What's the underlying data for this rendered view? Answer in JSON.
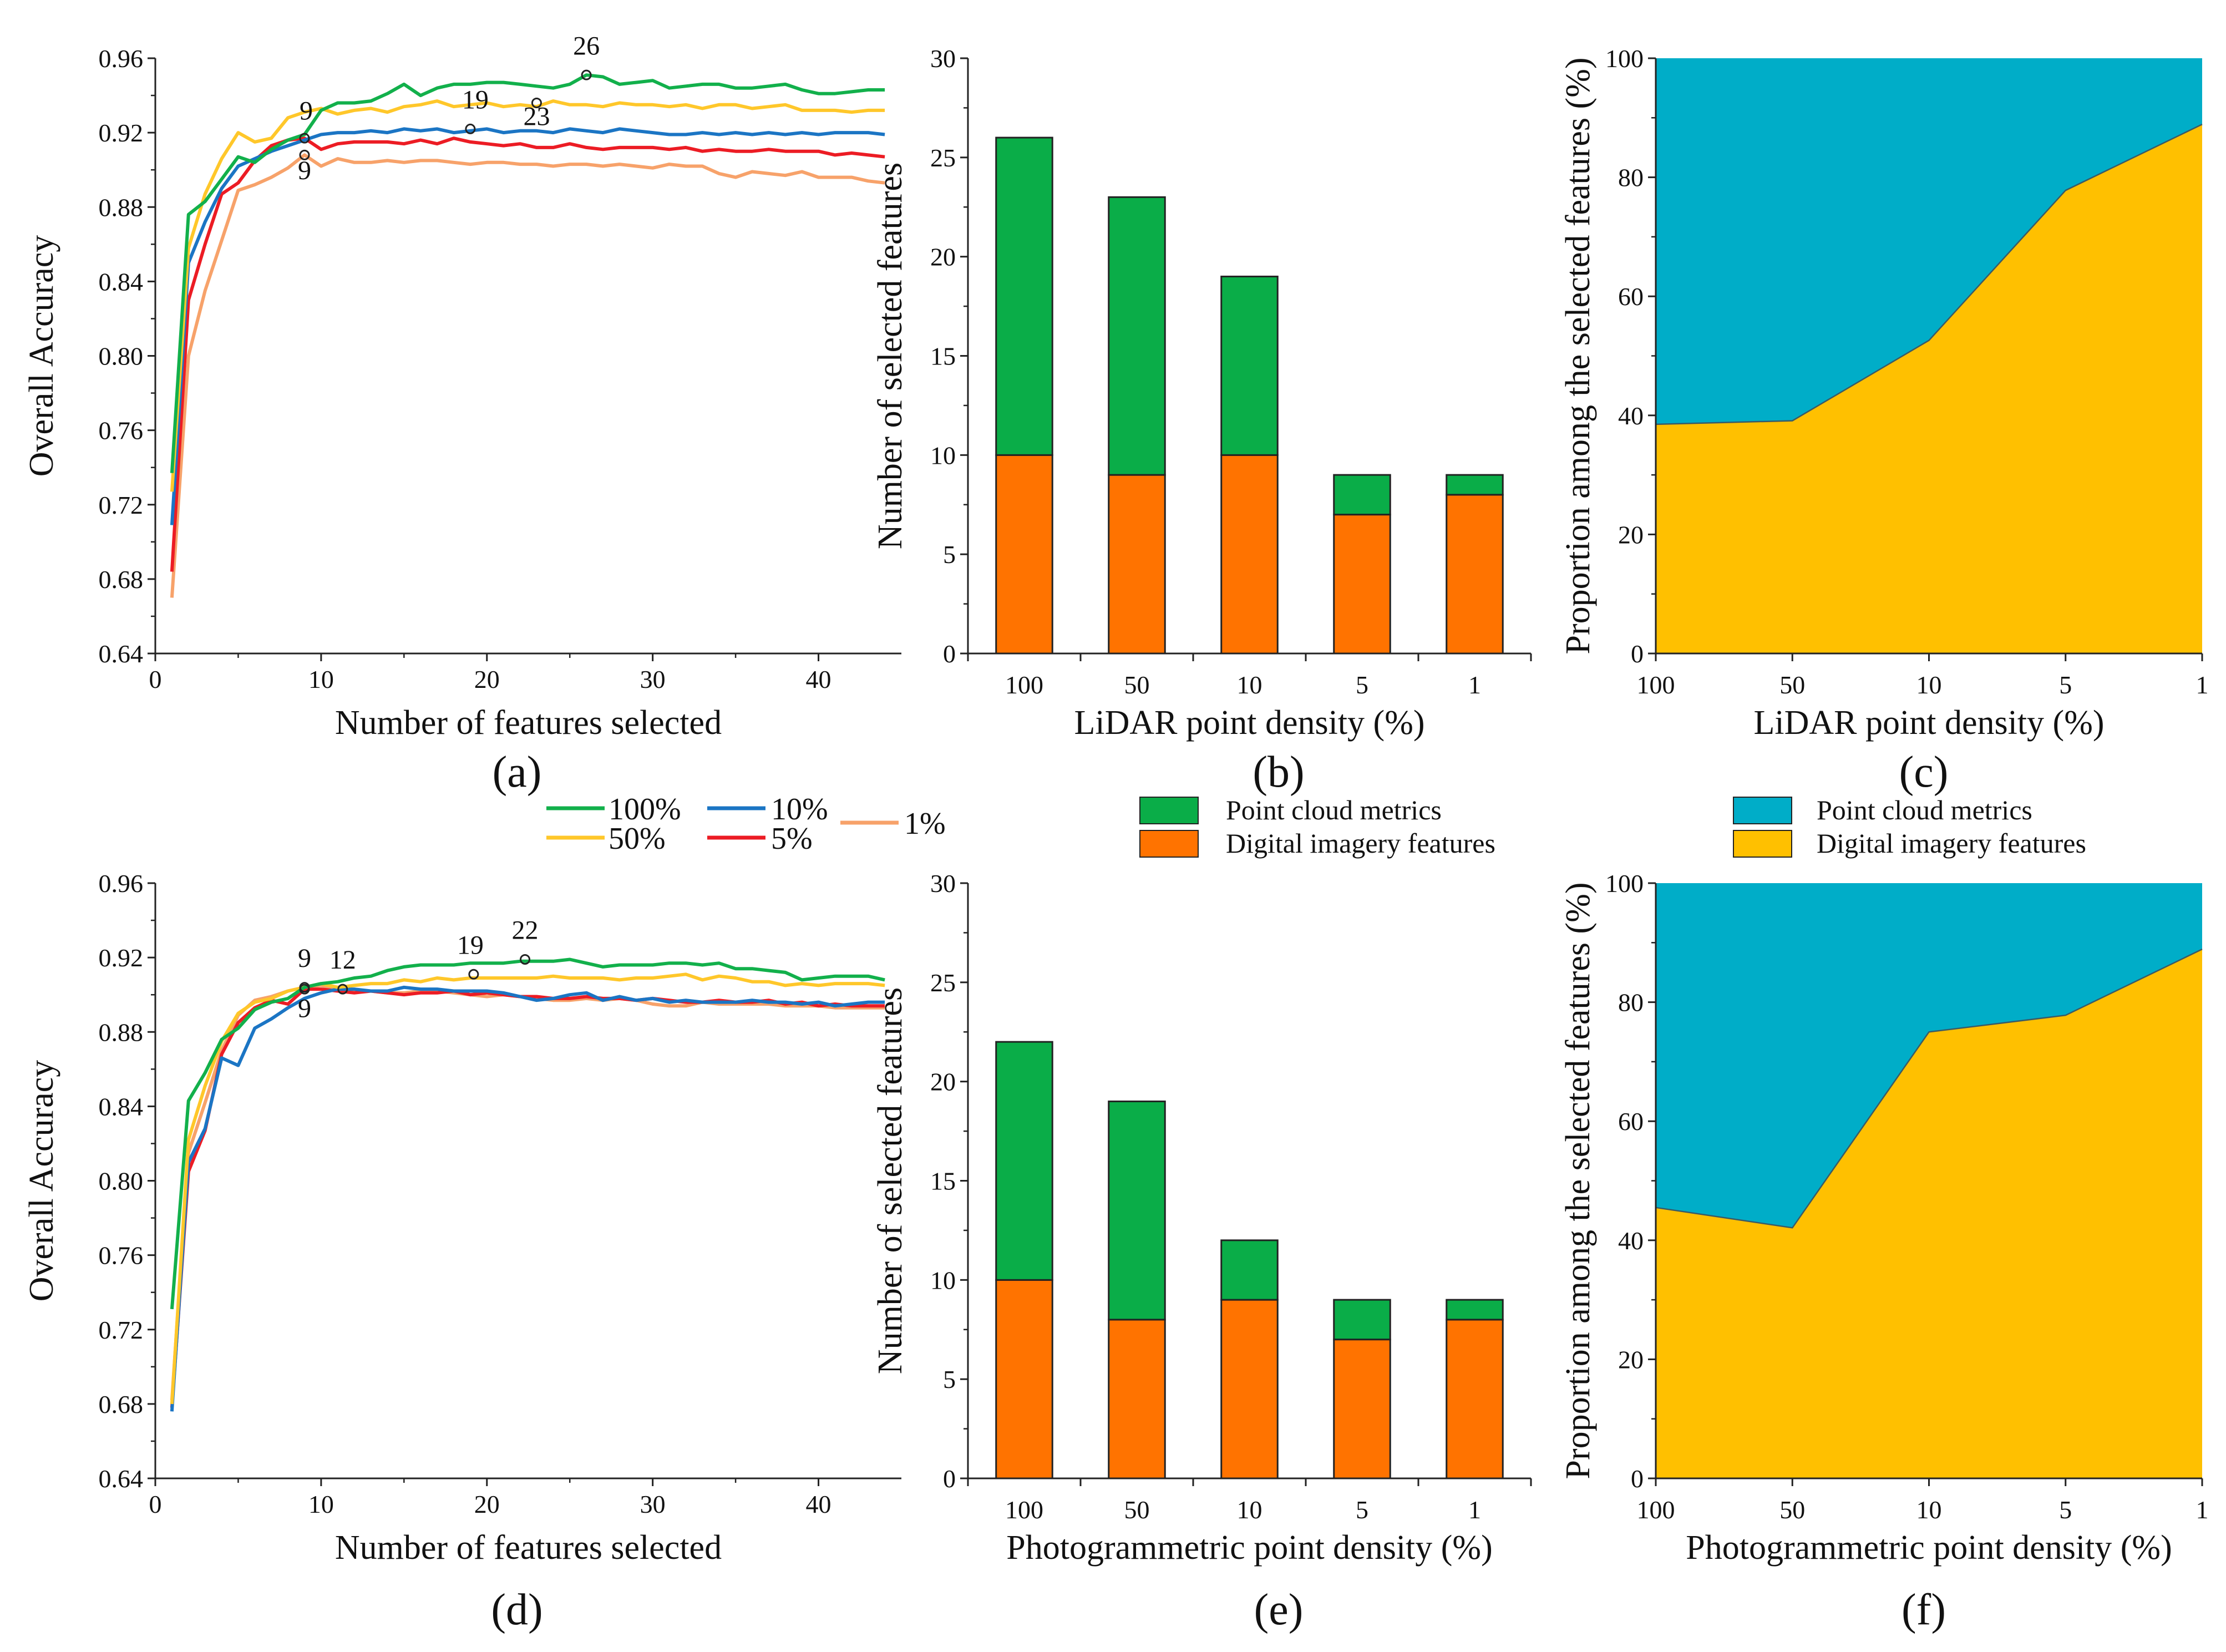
{
  "colors": {
    "s100": "#12b04b",
    "s50": "#ffc72a",
    "s10": "#1b75c4",
    "s5": "#ec1c24",
    "s1": "#f7a26a",
    "bar_green": "#0aad48",
    "bar_orange": "#ff7300",
    "area_blue": "#00adc8",
    "area_yellow": "#ffc000"
  },
  "line_legend": [
    {
      "label": "100%",
      "color": "#12b04b"
    },
    {
      "label": "10%",
      "color": "#1b75c4"
    },
    {
      "label": "1%",
      "color": "#f7a26a"
    },
    {
      "label": "50%",
      "color": "#ffc72a"
    },
    {
      "label": "5%",
      "color": "#ec1c24"
    }
  ],
  "bar_legend": [
    {
      "label": "Point cloud metrics",
      "color": "#0aad48"
    },
    {
      "label": "Digital imagery features",
      "color": "#ff7300"
    }
  ],
  "area_legend": [
    {
      "label": "Point cloud metrics",
      "color": "#00adc8"
    },
    {
      "label": "Digital imagery features",
      "color": "#ffc000"
    }
  ],
  "chart_data": [
    {
      "panel": "a",
      "panel_label": "(a)",
      "type": "line",
      "xlabel": "Number of features selected",
      "ylabel": "Overall Accuracy",
      "xlim": [
        0,
        45
      ],
      "ylim": [
        0.64,
        0.96
      ],
      "xticks": [
        0,
        10,
        20,
        30,
        40
      ],
      "xtick_labels": [
        "0",
        "10",
        "20",
        "30",
        "40"
      ],
      "yticks": [
        0.64,
        0.68,
        0.72,
        0.76,
        0.8,
        0.84,
        0.88,
        0.92,
        0.96
      ],
      "ytick_labels": [
        "0.64",
        "0.68",
        "0.72",
        "0.76",
        "0.80",
        "0.84",
        "0.88",
        "0.92",
        "0.96"
      ],
      "x": [
        1,
        2,
        3,
        4,
        5,
        6,
        7,
        8,
        9,
        10,
        11,
        12,
        13,
        14,
        15,
        16,
        17,
        18,
        19,
        20,
        21,
        22,
        23,
        24,
        25,
        26,
        27,
        28,
        29,
        30,
        31,
        32,
        33,
        34,
        35,
        36,
        37,
        38,
        39,
        40,
        41,
        42,
        43,
        44
      ],
      "series": [
        {
          "name": "100%",
          "color_key": "s100",
          "values": [
            0.737,
            0.876,
            0.883,
            0.895,
            0.907,
            0.904,
            0.911,
            0.916,
            0.919,
            0.932,
            0.936,
            0.936,
            0.937,
            0.941,
            0.946,
            0.94,
            0.944,
            0.946,
            0.946,
            0.947,
            0.947,
            0.946,
            0.945,
            0.944,
            0.946,
            0.951,
            0.95,
            0.946,
            0.947,
            0.948,
            0.944,
            0.945,
            0.946,
            0.946,
            0.944,
            0.944,
            0.945,
            0.946,
            0.943,
            0.941,
            0.941,
            0.942,
            0.943,
            0.943
          ]
        },
        {
          "name": "50%",
          "color_key": "s50",
          "values": [
            0.727,
            0.858,
            0.887,
            0.906,
            0.92,
            0.915,
            0.917,
            0.928,
            0.931,
            0.933,
            0.93,
            0.932,
            0.933,
            0.931,
            0.934,
            0.935,
            0.937,
            0.934,
            0.935,
            0.936,
            0.934,
            0.935,
            0.934,
            0.937,
            0.935,
            0.935,
            0.934,
            0.936,
            0.935,
            0.935,
            0.934,
            0.935,
            0.933,
            0.935,
            0.935,
            0.933,
            0.934,
            0.935,
            0.932,
            0.932,
            0.932,
            0.931,
            0.932,
            0.932
          ]
        },
        {
          "name": "10%",
          "color_key": "s10",
          "values": [
            0.709,
            0.85,
            0.872,
            0.89,
            0.902,
            0.906,
            0.91,
            0.913,
            0.916,
            0.919,
            0.92,
            0.92,
            0.921,
            0.92,
            0.922,
            0.921,
            0.922,
            0.92,
            0.921,
            0.922,
            0.92,
            0.921,
            0.921,
            0.92,
            0.922,
            0.921,
            0.92,
            0.922,
            0.921,
            0.92,
            0.919,
            0.919,
            0.92,
            0.919,
            0.92,
            0.919,
            0.92,
            0.919,
            0.92,
            0.919,
            0.92,
            0.92,
            0.92,
            0.919
          ]
        },
        {
          "name": "5%",
          "color_key": "s5",
          "values": [
            0.684,
            0.83,
            0.86,
            0.887,
            0.893,
            0.905,
            0.913,
            0.916,
            0.917,
            0.911,
            0.914,
            0.915,
            0.915,
            0.915,
            0.914,
            0.916,
            0.914,
            0.917,
            0.915,
            0.914,
            0.913,
            0.914,
            0.912,
            0.912,
            0.914,
            0.912,
            0.911,
            0.912,
            0.912,
            0.912,
            0.911,
            0.912,
            0.91,
            0.911,
            0.91,
            0.91,
            0.911,
            0.91,
            0.91,
            0.91,
            0.908,
            0.909,
            0.908,
            0.907
          ]
        },
        {
          "name": "1%",
          "color_key": "s1",
          "values": [
            0.67,
            0.8,
            0.835,
            0.862,
            0.889,
            0.892,
            0.896,
            0.901,
            0.908,
            0.902,
            0.906,
            0.904,
            0.904,
            0.905,
            0.904,
            0.905,
            0.905,
            0.904,
            0.903,
            0.904,
            0.904,
            0.903,
            0.903,
            0.902,
            0.903,
            0.903,
            0.902,
            0.903,
            0.902,
            0.901,
            0.903,
            0.902,
            0.902,
            0.898,
            0.896,
            0.899,
            0.898,
            0.897,
            0.899,
            0.896,
            0.896,
            0.896,
            0.894,
            0.893
          ]
        }
      ],
      "annotations": [
        {
          "text": "26",
          "x": 26,
          "y": 0.951,
          "label_dx": 0,
          "label_dy": 0.011,
          "marker": true
        },
        {
          "text": "19",
          "x": 19,
          "y": 0.922,
          "label_dx": 0.3,
          "label_dy": 0.011,
          "marker": true
        },
        {
          "text": "23",
          "x": 23,
          "y": 0.936,
          "label_dx": 0,
          "label_dy": -0.012,
          "marker": true
        },
        {
          "text": "9",
          "x": 9,
          "y": 0.917,
          "label_dx": 0.1,
          "label_dy": 0.01,
          "marker": true
        },
        {
          "text": "9",
          "x": 9,
          "y": 0.908,
          "label_dx": 0,
          "label_dy": -0.013,
          "marker": true
        }
      ]
    },
    {
      "panel": "b",
      "panel_label": "(b)",
      "type": "bar",
      "stacked": true,
      "xlabel": "LiDAR point density (%)",
      "ylabel": "Number of selected features",
      "ylim": [
        0,
        30
      ],
      "yticks": [
        0,
        5,
        10,
        15,
        20,
        25,
        30
      ],
      "ytick_labels": [
        "0",
        "5",
        "10",
        "15",
        "20",
        "25",
        "30"
      ],
      "categories": [
        "100",
        "50",
        "10",
        "5",
        "1"
      ],
      "series": [
        {
          "name": "Digital imagery features",
          "color_key": "bar_orange",
          "values": [
            10,
            9,
            10,
            7,
            8
          ]
        },
        {
          "name": "Point cloud metrics",
          "color_key": "bar_green",
          "values": [
            16,
            14,
            9,
            2,
            1
          ]
        }
      ]
    },
    {
      "panel": "c",
      "panel_label": "(c)",
      "type": "area",
      "stacked": true,
      "xlabel": "LiDAR point density (%)",
      "ylabel": "Proportion among the selected features (%)",
      "ylim": [
        0,
        100
      ],
      "yticks": [
        0,
        20,
        40,
        60,
        80,
        100
      ],
      "ytick_labels": [
        "0",
        "20",
        "40",
        "60",
        "80",
        "100"
      ],
      "categories": [
        "100",
        "50",
        "10",
        "5",
        "1"
      ],
      "series": [
        {
          "name": "Digital imagery features",
          "color_key": "area_yellow",
          "values": [
            38.5,
            39.1,
            52.6,
            77.8,
            88.9
          ]
        },
        {
          "name": "Point cloud metrics",
          "color_key": "area_blue",
          "values": [
            61.5,
            60.9,
            47.4,
            22.2,
            11.1
          ]
        }
      ]
    },
    {
      "panel": "d",
      "panel_label": "(d)",
      "type": "line",
      "xlabel": "Number of features selected",
      "ylabel": "Overall Accuracy",
      "xlim": [
        0,
        45
      ],
      "ylim": [
        0.64,
        0.96
      ],
      "xticks": [
        0,
        10,
        20,
        30,
        40
      ],
      "xtick_labels": [
        "0",
        "10",
        "20",
        "30",
        "40"
      ],
      "yticks": [
        0.64,
        0.68,
        0.72,
        0.76,
        0.8,
        0.84,
        0.88,
        0.92,
        0.96
      ],
      "ytick_labels": [
        "0.64",
        "0.68",
        "0.72",
        "0.76",
        "0.80",
        "0.84",
        "0.88",
        "0.92",
        "0.96"
      ],
      "x": [
        1,
        2,
        3,
        4,
        5,
        6,
        7,
        8,
        9,
        10,
        11,
        12,
        13,
        14,
        15,
        16,
        17,
        18,
        19,
        20,
        21,
        22,
        23,
        24,
        25,
        26,
        27,
        28,
        29,
        30,
        31,
        32,
        33,
        34,
        35,
        36,
        37,
        38,
        39,
        40,
        41,
        42,
        43,
        44
      ],
      "series": [
        {
          "name": "100%",
          "color_key": "s100",
          "values": [
            0.731,
            0.843,
            0.858,
            0.876,
            0.882,
            0.892,
            0.896,
            0.898,
            0.904,
            0.906,
            0.907,
            0.909,
            0.91,
            0.913,
            0.915,
            0.916,
            0.916,
            0.916,
            0.917,
            0.917,
            0.917,
            0.918,
            0.918,
            0.918,
            0.919,
            0.917,
            0.915,
            0.916,
            0.916,
            0.916,
            0.917,
            0.917,
            0.916,
            0.917,
            0.914,
            0.914,
            0.913,
            0.912,
            0.908,
            0.909,
            0.91,
            0.91,
            0.91,
            0.908
          ]
        },
        {
          "name": "50%",
          "color_key": "s50",
          "values": [
            0.68,
            0.822,
            0.851,
            0.875,
            0.89,
            0.896,
            0.898,
            0.902,
            0.904,
            0.906,
            0.904,
            0.905,
            0.906,
            0.906,
            0.908,
            0.907,
            0.909,
            0.908,
            0.909,
            0.909,
            0.909,
            0.909,
            0.909,
            0.91,
            0.909,
            0.909,
            0.909,
            0.908,
            0.909,
            0.909,
            0.91,
            0.911,
            0.908,
            0.91,
            0.909,
            0.907,
            0.907,
            0.905,
            0.906,
            0.905,
            0.906,
            0.906,
            0.906,
            0.905
          ]
        },
        {
          "name": "10%",
          "color_key": "s10",
          "values": [
            0.676,
            0.81,
            0.828,
            0.866,
            0.862,
            0.882,
            0.887,
            0.893,
            0.898,
            0.901,
            0.903,
            0.903,
            0.902,
            0.902,
            0.904,
            0.903,
            0.903,
            0.902,
            0.902,
            0.902,
            0.901,
            0.899,
            0.897,
            0.898,
            0.9,
            0.901,
            0.897,
            0.899,
            0.897,
            0.898,
            0.896,
            0.897,
            0.896,
            0.896,
            0.896,
            0.897,
            0.896,
            0.896,
            0.895,
            0.896,
            0.894,
            0.895,
            0.896,
            0.896
          ]
        },
        {
          "name": "5%",
          "color_key": "s5",
          "values": [
            0.678,
            0.805,
            0.827,
            0.868,
            0.885,
            0.893,
            0.897,
            0.895,
            0.903,
            0.903,
            0.902,
            0.901,
            0.902,
            0.901,
            0.9,
            0.901,
            0.901,
            0.902,
            0.9,
            0.901,
            0.9,
            0.899,
            0.899,
            0.898,
            0.898,
            0.899,
            0.898,
            0.898,
            0.897,
            0.898,
            0.897,
            0.896,
            0.896,
            0.897,
            0.896,
            0.896,
            0.897,
            0.895,
            0.896,
            0.894,
            0.895,
            0.894,
            0.894,
            0.894
          ]
        },
        {
          "name": "1%",
          "color_key": "s1",
          "values": [
            0.682,
            0.815,
            0.842,
            0.87,
            0.889,
            0.897,
            0.899,
            0.902,
            0.904,
            0.905,
            0.903,
            0.902,
            0.902,
            0.901,
            0.901,
            0.902,
            0.902,
            0.901,
            0.9,
            0.899,
            0.9,
            0.899,
            0.898,
            0.897,
            0.897,
            0.898,
            0.897,
            0.898,
            0.897,
            0.895,
            0.894,
            0.894,
            0.896,
            0.895,
            0.895,
            0.895,
            0.895,
            0.894,
            0.894,
            0.894,
            0.893,
            0.893,
            0.893,
            0.893
          ]
        }
      ],
      "annotations": [
        {
          "text": "9",
          "x": 9,
          "y": 0.904,
          "label_dx": 0,
          "label_dy": 0.011,
          "marker": true
        },
        {
          "text": "9",
          "x": 9,
          "y": 0.903,
          "label_dx": 0,
          "label_dy": -0.015,
          "marker": true
        },
        {
          "text": "12",
          "x": 11.3,
          "y": 0.903,
          "label_dx": 0,
          "label_dy": 0.011,
          "marker": true
        },
        {
          "text": "19",
          "x": 19.2,
          "y": 0.911,
          "label_dx": -0.2,
          "label_dy": 0.011,
          "marker": true
        },
        {
          "text": "22",
          "x": 22.3,
          "y": 0.919,
          "label_dx": 0,
          "label_dy": 0.011,
          "marker": true
        }
      ]
    },
    {
      "panel": "e",
      "panel_label": "(e)",
      "type": "bar",
      "stacked": true,
      "xlabel": "Photogrammetric point density (%)",
      "ylabel": "Number of selected features",
      "ylim": [
        0,
        30
      ],
      "yticks": [
        0,
        5,
        10,
        15,
        20,
        25,
        30
      ],
      "ytick_labels": [
        "0",
        "5",
        "10",
        "15",
        "20",
        "25",
        "30"
      ],
      "categories": [
        "100",
        "50",
        "10",
        "5",
        "1"
      ],
      "series": [
        {
          "name": "Digital imagery features",
          "color_key": "bar_orange",
          "values": [
            10,
            8,
            9,
            7,
            8
          ]
        },
        {
          "name": "Point cloud metrics",
          "color_key": "bar_green",
          "values": [
            12,
            11,
            3,
            2,
            1
          ]
        }
      ]
    },
    {
      "panel": "f",
      "panel_label": "(f)",
      "type": "area",
      "stacked": true,
      "xlabel": "Photogrammetric point density (%)",
      "ylabel": "Proportion among the selected features (%)",
      "ylim": [
        0,
        100
      ],
      "yticks": [
        0,
        20,
        40,
        60,
        80,
        100
      ],
      "ytick_labels": [
        "0",
        "20",
        "40",
        "60",
        "80",
        "100"
      ],
      "categories": [
        "100",
        "50",
        "10",
        "5",
        "1"
      ],
      "series": [
        {
          "name": "Digital imagery features",
          "color_key": "area_yellow",
          "values": [
            45.5,
            42.1,
            75.0,
            77.8,
            88.9
          ]
        },
        {
          "name": "Point cloud metrics",
          "color_key": "area_blue",
          "values": [
            54.5,
            57.9,
            25.0,
            22.2,
            11.1
          ]
        }
      ]
    }
  ]
}
